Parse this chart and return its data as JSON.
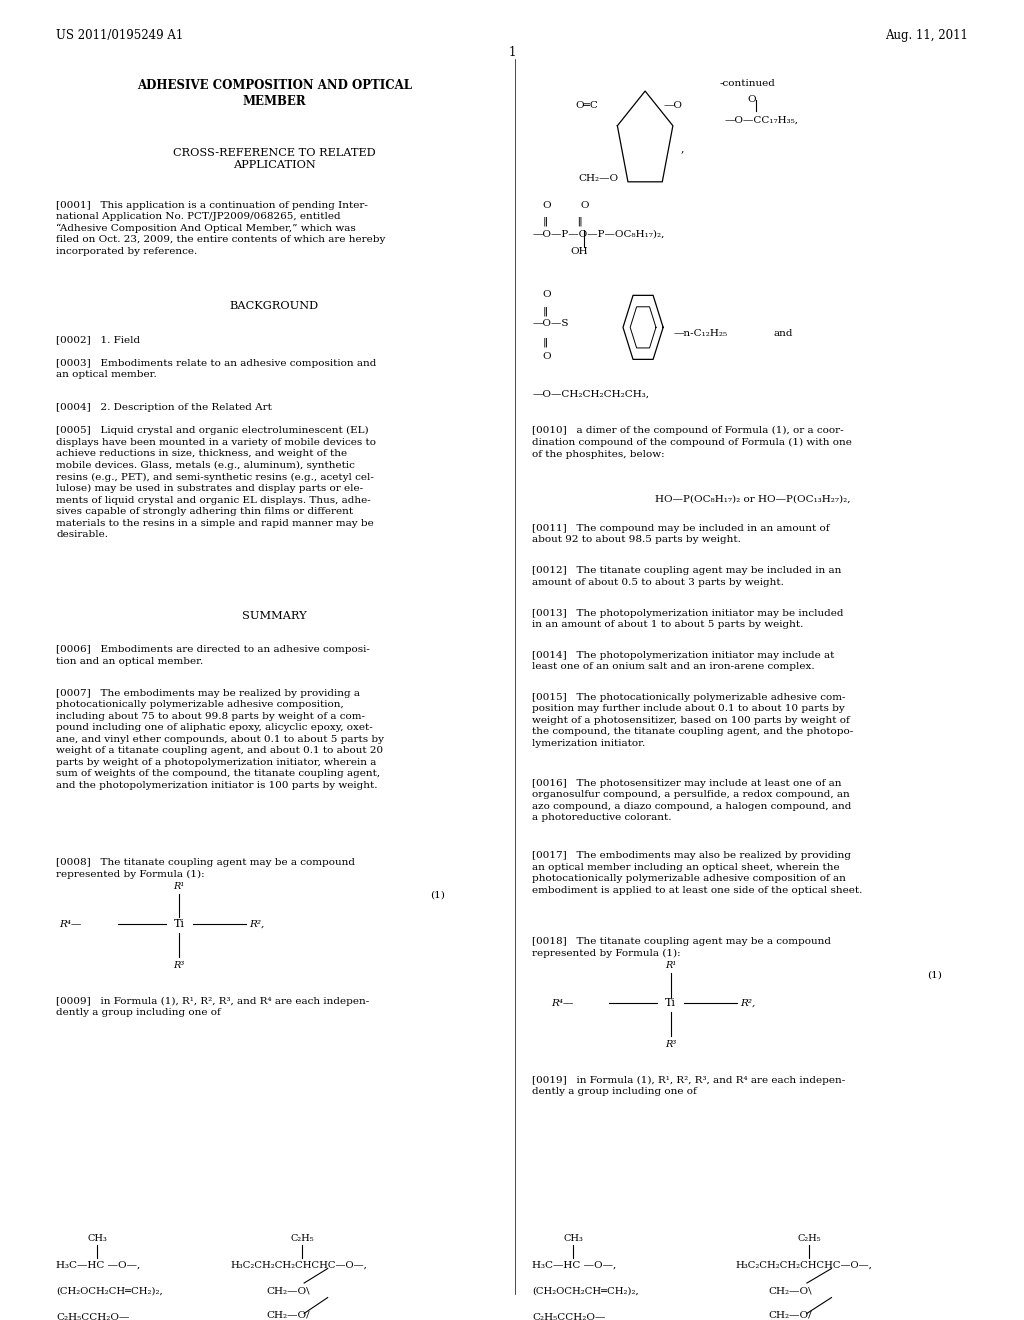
{
  "page_width": 10.24,
  "page_height": 13.2,
  "bg_color": "#ffffff",
  "header_left": "US 2011/0195249 A1",
  "header_right": "Aug. 11, 2011",
  "page_number": "1",
  "title_bold": "ADHESIVE COMPOSITION AND OPTICAL\nMEMBER",
  "section1_title": "CROSS-REFERENCE TO RELATED\nAPPLICATION",
  "para0001": "[0001]   This application is a continuation of pending Inter-\nnational Application No. PCT/JP2009/068265, entitled\n“Adhesive Composition And Optical Member,” which was\nfiled on Oct. 23, 2009, the entire contents of which are hereby\nincorporated by reference.",
  "section2_title": "BACKGROUND",
  "para0002": "[0002]   1. Field",
  "para0003": "[0003]   Embodiments relate to an adhesive composition and\nan optical member.",
  "para0004": "[0004]   2. Description of the Related Art",
  "para0005": "[0005]   Liquid crystal and organic electroluminescent (EL)\ndisplays have been mounted in a variety of mobile devices to\nachieve reductions in size, thickness, and weight of the\nmobile devices. Glass, metals (e.g., aluminum), synthetic\nresins (e.g., PET), and semi-synthetic resins (e.g., acetyl cel-\nlulose) may be used in substrates and display parts or ele-\nments of liquid crystal and organic EL displays. Thus, adhe-\nsives capable of strongly adhering thin films or different\nmaterials to the resins in a simple and rapid manner may be\ndesirable.",
  "section3_title": "SUMMARY",
  "para0006": "[0006]   Embodiments are directed to an adhesive composi-\ntion and an optical member.",
  "para0007": "[0007]   The embodiments may be realized by providing a\nphotocationically polymerizable adhesive composition,\nincluding about 75 to about 99.8 parts by weight of a com-\npound including one of aliphatic epoxy, alicyclic epoxy, oxet-\nane, and vinyl ether compounds, about 0.1 to about 5 parts by\nweight of a titanate coupling agent, and about 0.1 to about 20\nparts by weight of a photopolymerization initiator, wherein a\nsum of weights of the compound, the titanate coupling agent,\nand the photopolymerization initiator is 100 parts by weight.",
  "para0008": "[0008]   The titanate coupling agent may be a compound\nrepresented by Formula (1):",
  "para0009": "[0009]   in Formula (1), R¹, R², R³, and R⁴ are each indepen-\ndently a group including one of",
  "right_col_continued": "-continued",
  "para0010": "[0010]   a dimer of the compound of Formula (1), or a coor-\ndination compound of the compound of Formula (1) with one\nof the phosphites, below:",
  "phosphite_formula": "HO—P(OC₈H₁₇)₂ or HO—P(OC₁₃H₂₇)₂,",
  "para0011": "[0011]   The compound may be included in an amount of\nabout 92 to about 98.5 parts by weight.",
  "para0012": "[0012]   The titanate coupling agent may be included in an\namount of about 0.5 to about 3 parts by weight.",
  "para0013": "[0013]   The photopolymerization initiator may be included\nin an amount of about 1 to about 5 parts by weight.",
  "para0014": "[0014]   The photopolymerization initiator may include at\nleast one of an onium salt and an iron-arene complex.",
  "para0015": "[0015]   The photocationically polymerizable adhesive com-\nposition may further include about 0.1 to about 10 parts by\nweight of a photosensitizer, based on 100 parts by weight of\nthe compound, the titanate coupling agent, and the photopo-\nlymerization initiator.",
  "para0016": "[0016]   The photosensitizer may include at least one of an\norganosulfur compound, a persulfide, a redox compound, an\nazo compound, a diazo compound, a halogen compound, and\na photoreductive colorant.",
  "para0017": "[0017]   The embodiments may also be realized by providing\nan optical member including an optical sheet, wherein the\nphotocationically polymerizable adhesive composition of an\nembodiment is applied to at least one side of the optical sheet.",
  "para0018": "[0018]   The titanate coupling agent may be a compound\nrepresented by Formula (1):",
  "para0019": "[0019]   in Formula (1), R¹, R², R³, and R⁴ are each indepen-\ndently a group including one of"
}
